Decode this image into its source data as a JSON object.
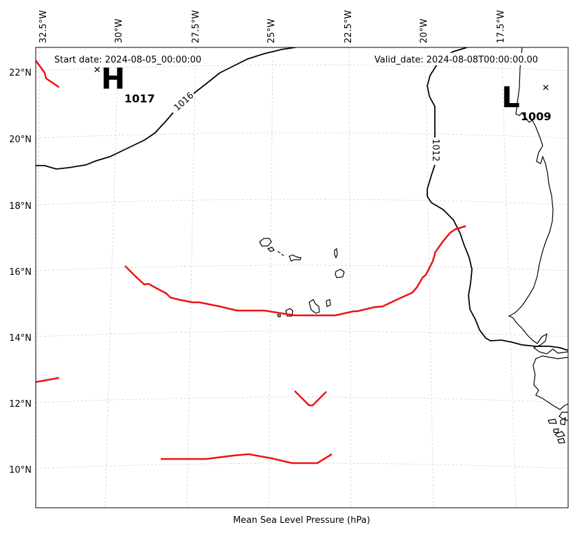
{
  "header": {
    "start_date": "Start date: 2024-08-05_00:00:00",
    "valid_date": "Valid_date: 2024-08-08T00:00:00.00"
  },
  "footer": {
    "xlabel": "Mean Sea Level Pressure (hPa)"
  },
  "axes": {
    "lon_ticks": [
      "32.5°W",
      "30°W",
      "27.5°W",
      "25°W",
      "22.5°W",
      "20°W",
      "17.5°W"
    ],
    "lat_ticks": [
      "22°N",
      "20°N",
      "18°N",
      "16°N",
      "14°N",
      "12°N",
      "10°N"
    ]
  },
  "pressure_centers": {
    "high": {
      "symbol": "H",
      "value": "1017"
    },
    "low": {
      "symbol": "L",
      "value": "1009"
    }
  },
  "isobar_labels": [
    "1016",
    "1012"
  ],
  "colors": {
    "front": "#ee1111",
    "isobar": "#000000",
    "grid": "#cfcfcf"
  }
}
